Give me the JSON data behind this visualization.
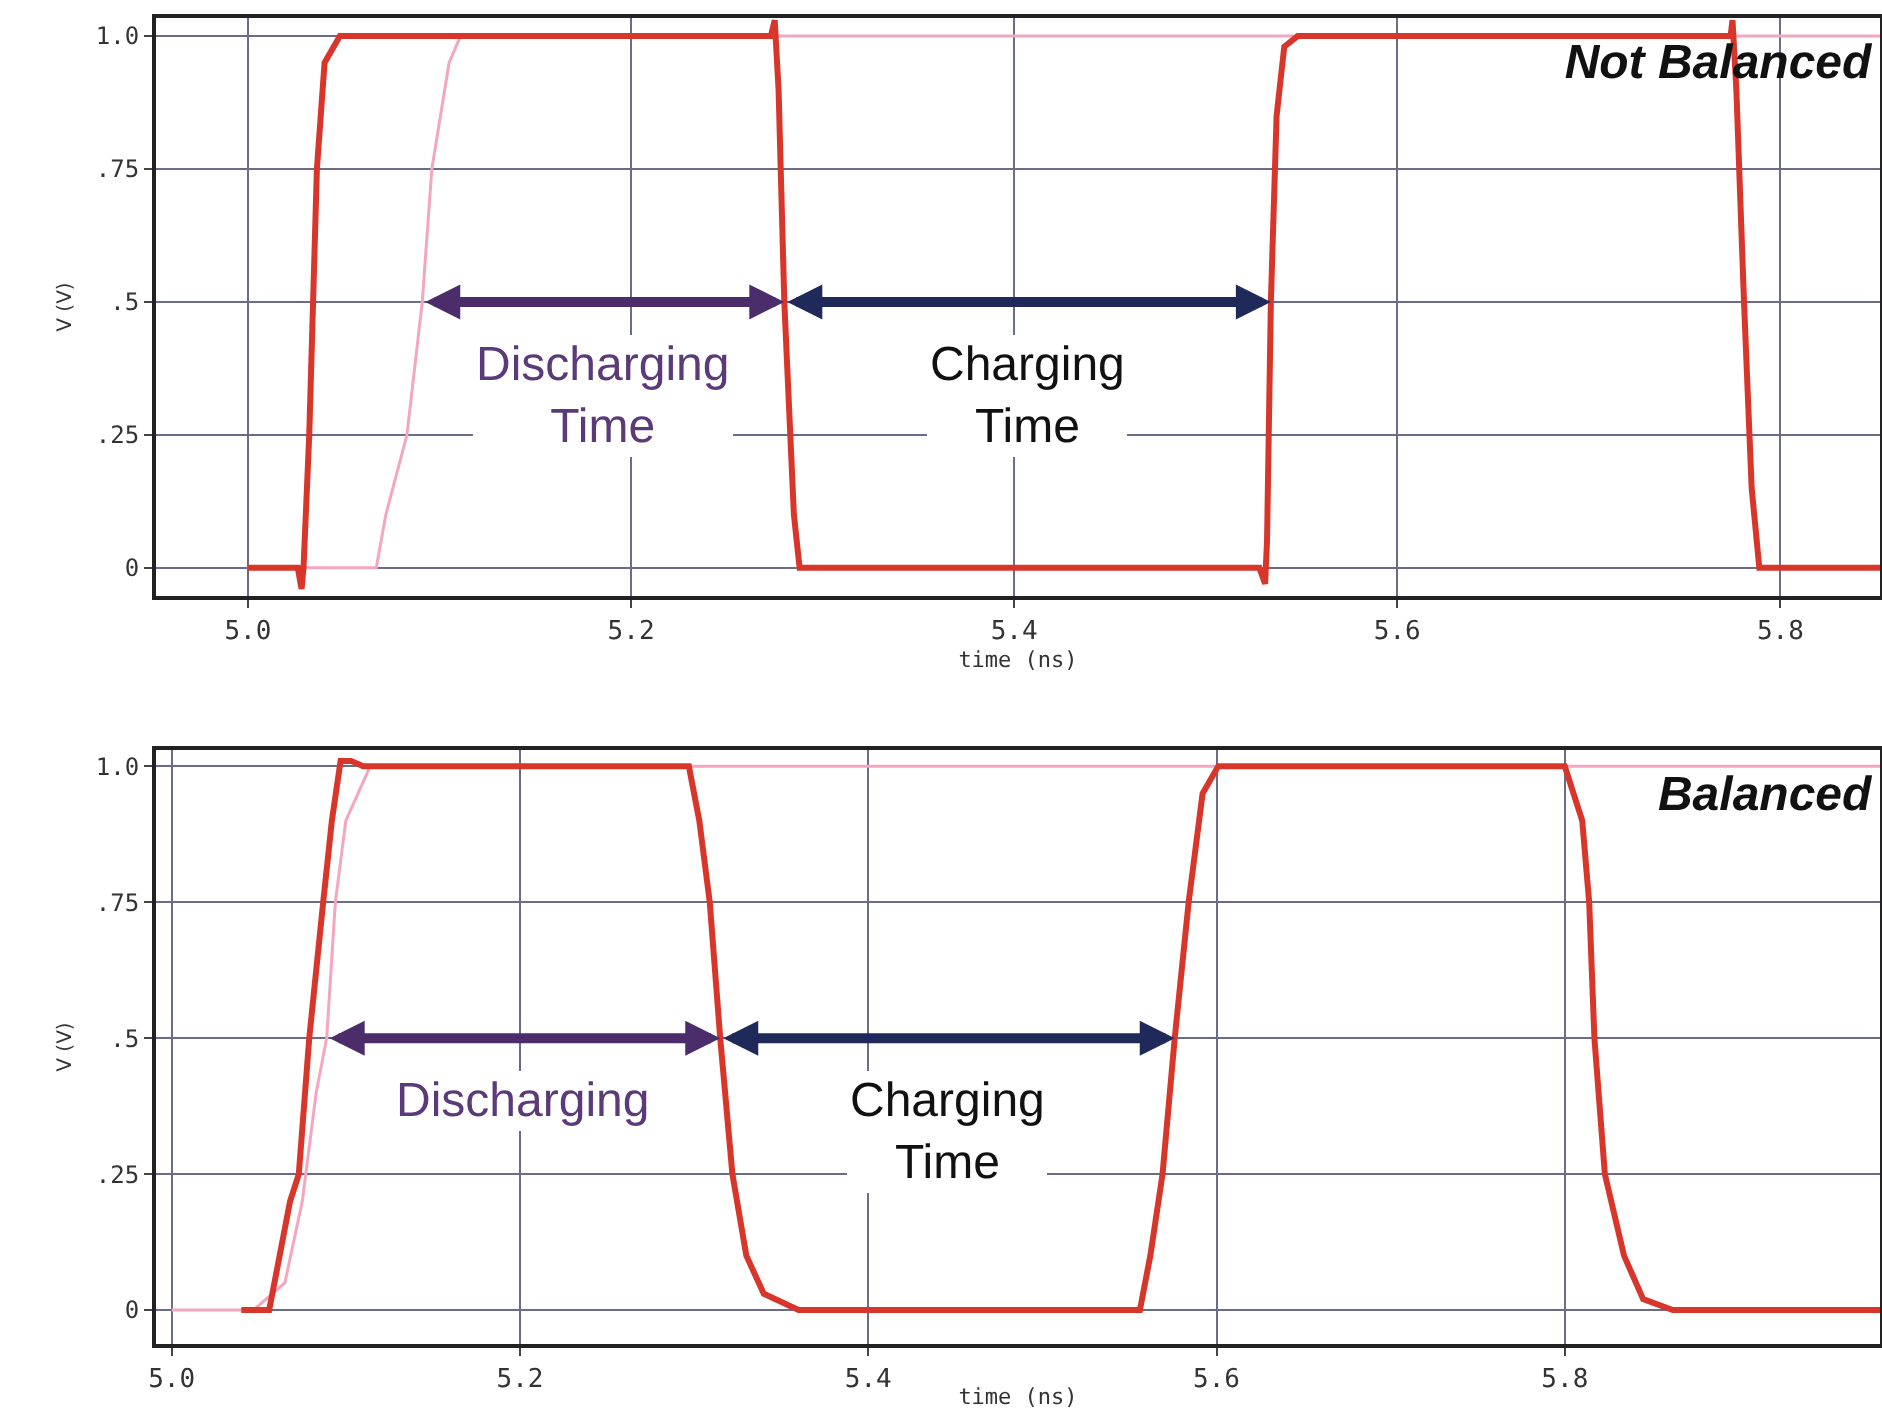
{
  "chart_data": [
    {
      "type": "line",
      "title": "Not Balanced",
      "xlabel": "time (ns)",
      "ylabel": "V (V)",
      "xlim": [
        4.952,
        5.852
      ],
      "ylim": [
        -0.053,
        1.034
      ],
      "xticks": [
        {
          "value": 5.0,
          "label": "5.0"
        },
        5.2,
        5.4,
        5.6,
        5.8
      ],
      "yticks": [
        0,
        {
          "value": 0.25,
          "label": ".25"
        },
        {
          "value": 0.5,
          "label": ".5"
        },
        {
          "value": 0.75,
          "label": ".75"
        },
        {
          "value": 1.0,
          "label": "1.0"
        }
      ],
      "grid": true,
      "marker": "none",
      "line_style": "solid",
      "series": [
        {
          "color": "#f4a6c0",
          "x": [
            5.0,
            5.067,
            5.072,
            5.083,
            5.091,
            5.096,
            5.105,
            5.111,
            5.852
          ],
          "values": [
            0,
            0,
            0.1,
            0.25,
            0.5,
            0.75,
            0.95,
            1.0,
            1.0
          ]
        },
        {
          "color": "#d9362b",
          "x": [
            5.0,
            5.026,
            5.028,
            5.029,
            5.032,
            5.034,
            5.036,
            5.04,
            5.048,
            5.273,
            5.275,
            5.277,
            5.28,
            5.285,
            5.288,
            5.528,
            5.531,
            5.532,
            5.534,
            5.537,
            5.541,
            5.548,
            5.774,
            5.775,
            5.777,
            5.781,
            5.785,
            5.789,
            5.852
          ],
          "values": [
            0,
            0,
            -0.04,
            0,
            0.25,
            0.5,
            0.75,
            0.95,
            1.0,
            1.0,
            1.03,
            0.9,
            0.5,
            0.1,
            0,
            0,
            -0.03,
            0.05,
            0.5,
            0.85,
            0.98,
            1.0,
            1.0,
            1.03,
            0.9,
            0.5,
            0.15,
            0,
            0
          ]
        }
      ],
      "annotations": [
        "Discharging\nTime",
        "Charging\nTime"
      ]
    },
    {
      "type": "line",
      "title": "Balanced",
      "xlabel": "time (ns)",
      "ylabel": "V (V)",
      "xlim": [
        4.991,
        5.981
      ],
      "ylim": [
        -0.0625,
        1.03
      ],
      "xticks": [
        {
          "value": 5.0,
          "label": "5.0"
        },
        5.2,
        5.4,
        5.6,
        5.8
      ],
      "yticks": [
        0,
        {
          "value": 0.25,
          "label": ".25"
        },
        {
          "value": 0.5,
          "label": ".5"
        },
        {
          "value": 0.75,
          "label": ".75"
        },
        {
          "value": 1.0,
          "label": "1.0"
        }
      ],
      "grid": true,
      "marker": "none",
      "line_style": "solid",
      "series": [
        {
          "color": "#f4a6c0",
          "x": [
            5.0,
            5.047,
            5.065,
            5.075,
            5.083,
            5.089,
            5.094,
            5.1,
            5.114,
            5.981
          ],
          "values": [
            0,
            0,
            0.05,
            0.2,
            0.4,
            0.5,
            0.75,
            0.9,
            1.0,
            1.0
          ]
        },
        {
          "color": "#d9362b",
          "x": [
            5.04,
            5.056,
            5.062,
            5.068,
            5.073,
            5.079,
            5.087,
            5.092,
            5.097,
            5.103,
            5.11,
            5.297,
            5.303,
            5.309,
            5.315,
            5.322,
            5.33,
            5.34,
            5.36,
            5.556,
            5.562,
            5.569,
            5.576,
            5.584,
            5.592,
            5.601,
            5.8,
            5.81,
            5.814,
            5.817,
            5.823,
            5.834,
            5.845,
            5.862,
            5.981
          ],
          "values": [
            0,
            0,
            0.1,
            0.2,
            0.25,
            0.5,
            0.75,
            0.9,
            1.01,
            1.01,
            1.0,
            1.0,
            0.9,
            0.75,
            0.5,
            0.25,
            0.1,
            0.03,
            0,
            0,
            0.1,
            0.25,
            0.5,
            0.75,
            0.95,
            1.0,
            1.0,
            0.9,
            0.75,
            0.5,
            0.25,
            0.1,
            0.02,
            0,
            0
          ]
        }
      ],
      "annotations": [
        "Discharging",
        "Charging\nTime"
      ]
    }
  ]
}
